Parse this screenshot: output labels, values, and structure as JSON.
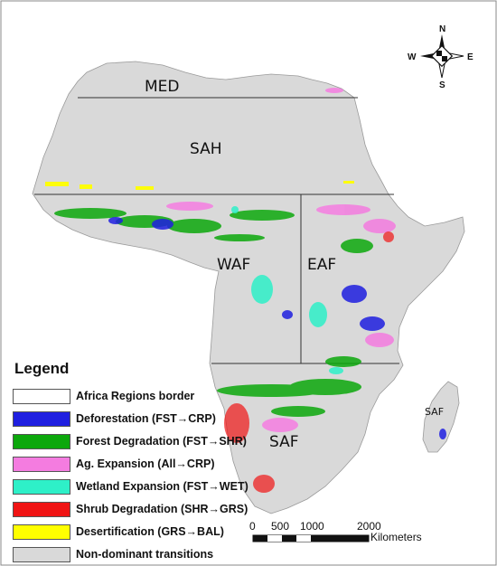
{
  "legend": {
    "title": "Legend",
    "items": [
      {
        "label": "Africa Regions border",
        "color": "#ffffff"
      },
      {
        "label": "Deforestation (FST→CRP)",
        "color": "#1f1fe0"
      },
      {
        "label": "Forest Degradation (FST→SHR)",
        "color": "#0ca80c"
      },
      {
        "label": "Ag. Expansion (All→CRP)",
        "color": "#f47ce0"
      },
      {
        "label": "Wetland Expansion (FST→WET)",
        "color": "#2ef0c8"
      },
      {
        "label": "Shrub Degradation (SHR→GRS)",
        "color": "#f01414"
      },
      {
        "label": "Desertification (GRS→BAL)",
        "color": "#ffff00"
      },
      {
        "label": "Non-dominant transitions",
        "color": "#d9d9d9"
      }
    ]
  },
  "regions": [
    "MED",
    "SAH",
    "WAF",
    "EAF",
    "SAF",
    "SAF"
  ],
  "compass": {
    "n": "N",
    "s": "S",
    "e": "E",
    "w": "W"
  },
  "scale_bar": {
    "ticks": [
      "0",
      "500",
      "1000",
      "2000"
    ],
    "unit": "Kilometers"
  },
  "colors": {
    "land": "#d9d9d9",
    "border": "#333333",
    "background": "#ffffff"
  }
}
